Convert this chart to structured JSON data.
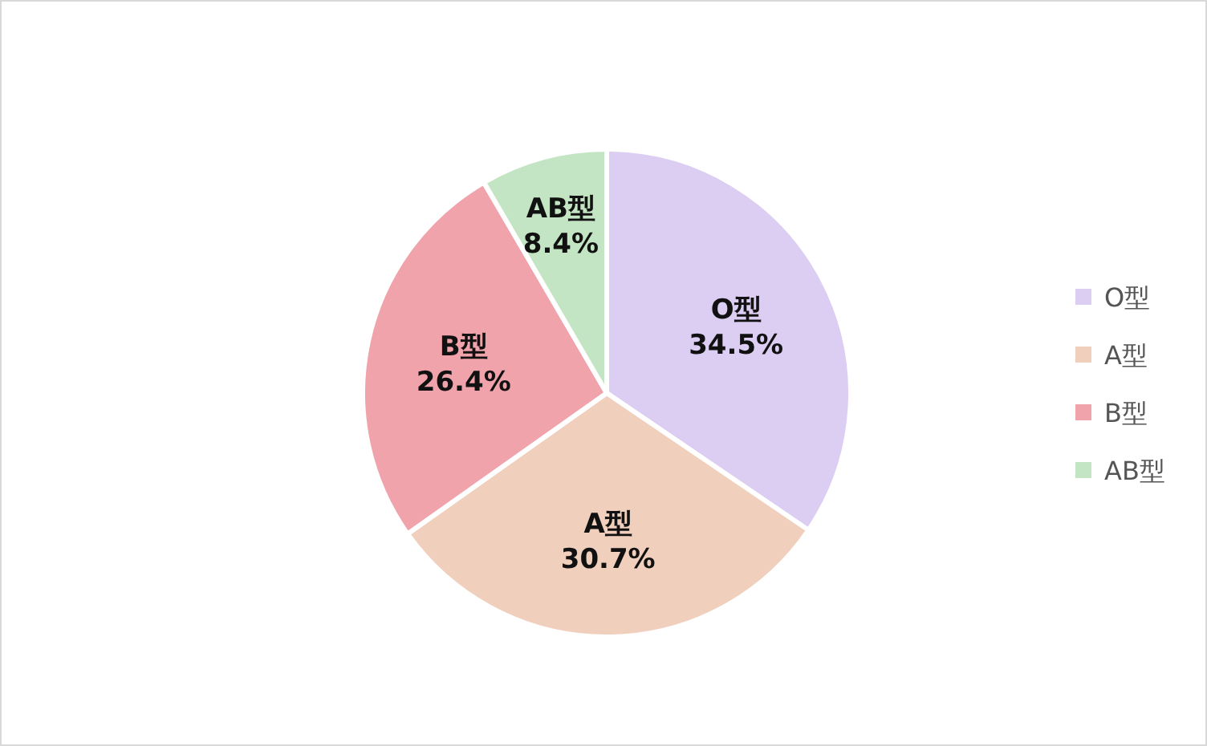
{
  "chart_data": {
    "type": "pie",
    "categories": [
      "O型",
      "A型",
      "B型",
      "AB型"
    ],
    "values": [
      34.5,
      30.7,
      26.4,
      8.4
    ],
    "colors": [
      "#dccdf2",
      "#f0cfbd",
      "#f0a3ab",
      "#c3e5c3"
    ],
    "value_labels": [
      "34.5%",
      "30.7%",
      "26.4%",
      "8.4%"
    ],
    "legend": "right"
  }
}
